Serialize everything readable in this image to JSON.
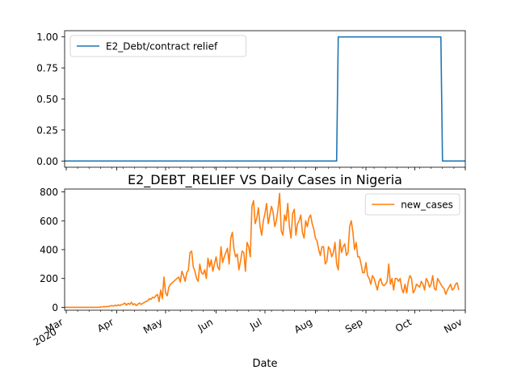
{
  "figure": {
    "title": "E2_DEBT_RELIEF VS Daily Cases in Nigeria",
    "xlabel": "Date"
  },
  "chart_data": [
    {
      "type": "line",
      "title": "",
      "xlabel": "",
      "ylabel": "",
      "xlim": [
        "2020-02-29",
        "2020-11-01"
      ],
      "ylim": [
        -0.05,
        1.05
      ],
      "yticks": [
        0.0,
        0.25,
        0.5,
        0.75,
        1.0
      ],
      "ytick_labels": [
        "0.00",
        "0.25",
        "0.50",
        "0.75",
        "1.00"
      ],
      "grid": false,
      "legend_position": "top-left",
      "series": [
        {
          "name": "E2_Debt/contract relief",
          "color": "#1f77b4",
          "x": [
            "2020-02-29",
            "2020-08-14",
            "2020-08-15",
            "2020-10-17",
            "2020-10-18",
            "2020-11-01"
          ],
          "y": [
            0,
            0,
            1,
            1,
            0,
            0
          ]
        }
      ]
    },
    {
      "type": "line",
      "title": "",
      "xlabel": "Date",
      "ylabel": "",
      "xlim": [
        "2020-02-29",
        "2020-11-01"
      ],
      "ylim": [
        -20,
        820
      ],
      "yticks": [
        0,
        200,
        400,
        600,
        800
      ],
      "ytick_labels": [
        "0",
        "200",
        "400",
        "600",
        "800"
      ],
      "xticks": [
        "2020-03-01",
        "2020-04-01",
        "2020-05-01",
        "2020-06-01",
        "2020-07-01",
        "2020-08-01",
        "2020-09-01",
        "2020-10-01",
        "2020-11-01"
      ],
      "xtick_labels": [
        [
          "Mar",
          "2020"
        ],
        [
          "Apr"
        ],
        [
          "May"
        ],
        [
          "Jun"
        ],
        [
          "Jul"
        ],
        [
          "Aug"
        ],
        [
          "Sep"
        ],
        [
          "Oct"
        ],
        [
          "Nov"
        ]
      ],
      "grid": false,
      "legend_position": "top-right",
      "series": [
        {
          "name": "new_cases",
          "color": "#ff7f0e",
          "x_start": "2020-02-29",
          "x_step_days": 1,
          "values": [
            0,
            0,
            0,
            0,
            0,
            0,
            0,
            0,
            0,
            0,
            0,
            0,
            0,
            0,
            0,
            0,
            0,
            0,
            0,
            0,
            0,
            0,
            2,
            3,
            5,
            4,
            6,
            5,
            10,
            12,
            8,
            15,
            10,
            18,
            12,
            20,
            22,
            30,
            15,
            28,
            20,
            35,
            18,
            25,
            12,
            22,
            30,
            20,
            28,
            35,
            40,
            45,
            60,
            55,
            70,
            65,
            80,
            90,
            40,
            120,
            60,
            210,
            100,
            80,
            140,
            160,
            170,
            180,
            190,
            200,
            210,
            175,
            250,
            220,
            180,
            240,
            260,
            380,
            390,
            280,
            250,
            200,
            180,
            300,
            240,
            230,
            260,
            200,
            340,
            280,
            330,
            250,
            300,
            350,
            280,
            260,
            420,
            310,
            350,
            380,
            410,
            300,
            480,
            520,
            400,
            350,
            370,
            260,
            320,
            390,
            380,
            250,
            450,
            420,
            350,
            700,
            740,
            580,
            620,
            690,
            560,
            500,
            600,
            650,
            720,
            580,
            640,
            700,
            660,
            560,
            600,
            680,
            790,
            530,
            500,
            640,
            600,
            720,
            560,
            480,
            650,
            680,
            500,
            580,
            600,
            640,
            520,
            480,
            600,
            560,
            620,
            640,
            580,
            540,
            480,
            460,
            400,
            360,
            420,
            420,
            300,
            320,
            420,
            400,
            350,
            380,
            450,
            300,
            260,
            470,
            380,
            420,
            440,
            360,
            380,
            560,
            600,
            520,
            400,
            450,
            350,
            350,
            300,
            240,
            240,
            310,
            220,
            200,
            160,
            220,
            200,
            160,
            120,
            180,
            200,
            160,
            150,
            160,
            180,
            300,
            160,
            200,
            120,
            200,
            200,
            180,
            200,
            130,
            100,
            160,
            100,
            180,
            220,
            200,
            100,
            120,
            160,
            150,
            140,
            180,
            160,
            120,
            200,
            180,
            140,
            160,
            220,
            130,
            120,
            200,
            180,
            160,
            140,
            130,
            90,
            120,
            140,
            160,
            120,
            130,
            160,
            170,
            120
          ]
        }
      ]
    }
  ]
}
